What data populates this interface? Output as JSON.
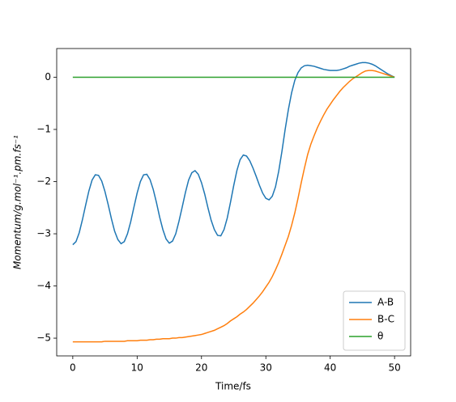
{
  "chart_data": {
    "type": "line",
    "xlabel": "Time/fs",
    "ylabel": "Momentum/g.mol⁻¹.pm.fs⁻¹",
    "xlim": [
      -2.5,
      52.5
    ],
    "ylim": [
      -5.34,
      0.55
    ],
    "xticks": [
      0,
      10,
      20,
      30,
      40,
      50
    ],
    "yticks": [
      {
        "value": -5,
        "label": "−5"
      },
      {
        "value": -4,
        "label": "−4"
      },
      {
        "value": -3,
        "label": "−3"
      },
      {
        "value": -2,
        "label": "−2"
      },
      {
        "value": -1,
        "label": "−1"
      },
      0
    ],
    "legend": "lower right",
    "x": [
      0,
      0.5,
      1,
      1.5,
      2,
      2.5,
      3,
      3.5,
      4,
      4.5,
      5,
      5.5,
      6,
      6.5,
      7,
      7.5,
      8,
      8.5,
      9,
      9.5,
      10,
      10.5,
      11,
      11.5,
      12,
      12.5,
      13,
      13.5,
      14,
      14.5,
      15,
      15.5,
      16,
      16.5,
      17,
      17.5,
      18,
      18.5,
      19,
      19.5,
      20,
      20.5,
      21,
      21.5,
      22,
      22.5,
      23,
      23.5,
      24,
      24.5,
      25,
      25.5,
      26,
      26.5,
      27,
      27.5,
      28,
      28.5,
      29,
      29.5,
      30,
      30.5,
      31,
      31.5,
      32,
      32.5,
      33,
      33.5,
      34,
      34.5,
      35,
      35.5,
      36,
      36.5,
      37,
      37.5,
      38,
      38.5,
      39,
      39.5,
      40,
      40.5,
      41,
      41.5,
      42,
      42.5,
      43,
      43.5,
      44,
      44.5,
      45,
      45.5,
      46,
      46.5,
      47,
      47.5,
      48,
      48.5,
      49,
      49.5,
      50
    ],
    "series": [
      {
        "name": "A-B",
        "color": "#1f77b4",
        "values": [
          -3.21,
          -3.15,
          -2.98,
          -2.73,
          -2.45,
          -2.18,
          -1.97,
          -1.87,
          -1.88,
          -1.99,
          -2.19,
          -2.44,
          -2.71,
          -2.95,
          -3.11,
          -3.19,
          -3.15,
          -3.0,
          -2.77,
          -2.49,
          -2.22,
          -2.0,
          -1.87,
          -1.86,
          -1.96,
          -2.15,
          -2.4,
          -2.68,
          -2.92,
          -3.1,
          -3.18,
          -3.14,
          -3.0,
          -2.76,
          -2.49,
          -2.21,
          -1.97,
          -1.83,
          -1.79,
          -1.86,
          -2.02,
          -2.24,
          -2.5,
          -2.74,
          -2.92,
          -3.03,
          -3.04,
          -2.92,
          -2.7,
          -2.4,
          -2.08,
          -1.79,
          -1.58,
          -1.49,
          -1.51,
          -1.6,
          -1.74,
          -1.9,
          -2.07,
          -2.22,
          -2.32,
          -2.35,
          -2.28,
          -2.1,
          -1.8,
          -1.42,
          -1.0,
          -0.62,
          -0.3,
          -0.06,
          0.09,
          0.18,
          0.22,
          0.23,
          0.22,
          0.21,
          0.19,
          0.17,
          0.15,
          0.14,
          0.13,
          0.13,
          0.13,
          0.14,
          0.16,
          0.18,
          0.21,
          0.23,
          0.25,
          0.27,
          0.28,
          0.28,
          0.27,
          0.25,
          0.22,
          0.18,
          0.14,
          0.1,
          0.06,
          0.03,
          0.0
        ]
      },
      {
        "name": "B-C",
        "color": "#ff7f0e",
        "values": [
          -5.07,
          -5.07,
          -5.07,
          -5.07,
          -5.07,
          -5.07,
          -5.07,
          -5.07,
          -5.07,
          -5.07,
          -5.06,
          -5.06,
          -5.06,
          -5.06,
          -5.06,
          -5.06,
          -5.06,
          -5.05,
          -5.05,
          -5.05,
          -5.05,
          -5.04,
          -5.04,
          -5.04,
          -5.03,
          -5.03,
          -5.02,
          -5.02,
          -5.01,
          -5.01,
          -5.01,
          -5.0,
          -5.0,
          -4.99,
          -4.99,
          -4.98,
          -4.97,
          -4.96,
          -4.95,
          -4.94,
          -4.93,
          -4.91,
          -4.89,
          -4.87,
          -4.85,
          -4.82,
          -4.79,
          -4.76,
          -4.72,
          -4.67,
          -4.63,
          -4.59,
          -4.54,
          -4.5,
          -4.45,
          -4.39,
          -4.33,
          -4.26,
          -4.19,
          -4.11,
          -4.02,
          -3.93,
          -3.82,
          -3.69,
          -3.55,
          -3.39,
          -3.22,
          -3.05,
          -2.84,
          -2.6,
          -2.32,
          -2.02,
          -1.74,
          -1.48,
          -1.28,
          -1.12,
          -0.97,
          -0.84,
          -0.72,
          -0.61,
          -0.52,
          -0.43,
          -0.35,
          -0.27,
          -0.2,
          -0.14,
          -0.08,
          -0.03,
          0.01,
          0.05,
          0.09,
          0.12,
          0.13,
          0.13,
          0.12,
          0.1,
          0.08,
          0.06,
          0.04,
          0.02,
          0.0
        ]
      },
      {
        "name": "θ",
        "color": "#2ca02c",
        "values": [
          0,
          0,
          0,
          0,
          0,
          0,
          0,
          0,
          0,
          0,
          0,
          0,
          0,
          0,
          0,
          0,
          0,
          0,
          0,
          0,
          0,
          0,
          0,
          0,
          0,
          0,
          0,
          0,
          0,
          0,
          0,
          0,
          0,
          0,
          0,
          0,
          0,
          0,
          0,
          0,
          0,
          0,
          0,
          0,
          0,
          0,
          0,
          0,
          0,
          0,
          0,
          0,
          0,
          0,
          0,
          0,
          0,
          0,
          0,
          0,
          0,
          0,
          0,
          0,
          0,
          0,
          0,
          0,
          0,
          0,
          0,
          0,
          0,
          0,
          0,
          0,
          0,
          0,
          0,
          0,
          0,
          0,
          0,
          0,
          0,
          0,
          0,
          0,
          0,
          0,
          0,
          0,
          0,
          0,
          0,
          0,
          0,
          0,
          0,
          0,
          0
        ]
      }
    ]
  }
}
